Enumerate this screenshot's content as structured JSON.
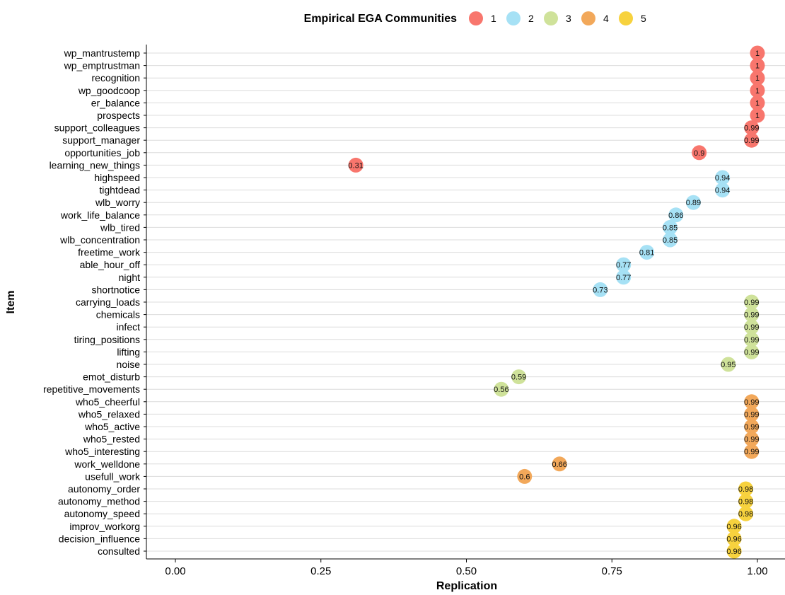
{
  "chart_data": {
    "type": "scatter",
    "title": "",
    "xlabel": "Replication",
    "ylabel": "Item",
    "xlim": [
      -0.05,
      1.05
    ],
    "xticks": [
      0.0,
      0.25,
      0.5,
      0.75,
      1.0
    ],
    "xtick_labels": [
      "0.00",
      "0.25",
      "0.50",
      "0.75",
      "1.00"
    ],
    "grid": "horizontal",
    "legend": {
      "title": "Empirical EGA Communities",
      "position": "top",
      "entries": [
        {
          "label": "1",
          "color": "#F8766D"
        },
        {
          "label": "2",
          "color": "#A6E1F5"
        },
        {
          "label": "3",
          "color": "#CFE29A"
        },
        {
          "label": "4",
          "color": "#F2A85A"
        },
        {
          "label": "5",
          "color": "#F7D23E"
        }
      ]
    },
    "points": [
      {
        "item": "wp_mantrustemp",
        "value": 1.0,
        "label": "1",
        "community": "1"
      },
      {
        "item": "wp_emptrustman",
        "value": 1.0,
        "label": "1",
        "community": "1"
      },
      {
        "item": "recognition",
        "value": 1.0,
        "label": "1",
        "community": "1"
      },
      {
        "item": "wp_goodcoop",
        "value": 1.0,
        "label": "1",
        "community": "1"
      },
      {
        "item": "er_balance",
        "value": 1.0,
        "label": "1",
        "community": "1"
      },
      {
        "item": "prospects",
        "value": 1.0,
        "label": "1",
        "community": "1"
      },
      {
        "item": "support_colleagues",
        "value": 0.99,
        "label": "0.99",
        "community": "1"
      },
      {
        "item": "support_manager",
        "value": 0.99,
        "label": "0.99",
        "community": "1"
      },
      {
        "item": "opportunities_job",
        "value": 0.9,
        "label": "0.9",
        "community": "1"
      },
      {
        "item": "learning_new_things",
        "value": 0.31,
        "label": "0.31",
        "community": "1"
      },
      {
        "item": "highspeed",
        "value": 0.94,
        "label": "0.94",
        "community": "2"
      },
      {
        "item": "tightdead",
        "value": 0.94,
        "label": "0.94",
        "community": "2"
      },
      {
        "item": "wlb_worry",
        "value": 0.89,
        "label": "0.89",
        "community": "2"
      },
      {
        "item": "work_life_balance",
        "value": 0.86,
        "label": "0.86",
        "community": "2"
      },
      {
        "item": "wlb_tired",
        "value": 0.85,
        "label": "0.85",
        "community": "2"
      },
      {
        "item": "wlb_concentration",
        "value": 0.85,
        "label": "0.85",
        "community": "2"
      },
      {
        "item": "freetime_work",
        "value": 0.81,
        "label": "0.81",
        "community": "2"
      },
      {
        "item": "able_hour_off",
        "value": 0.77,
        "label": "0.77",
        "community": "2"
      },
      {
        "item": "night",
        "value": 0.77,
        "label": "0.77",
        "community": "2"
      },
      {
        "item": "shortnotice",
        "value": 0.73,
        "label": "0.73",
        "community": "2"
      },
      {
        "item": "carrying_loads",
        "value": 0.99,
        "label": "0.99",
        "community": "3"
      },
      {
        "item": "chemicals",
        "value": 0.99,
        "label": "0.99",
        "community": "3"
      },
      {
        "item": "infect",
        "value": 0.99,
        "label": "0.99",
        "community": "3"
      },
      {
        "item": "tiring_positions",
        "value": 0.99,
        "label": "0.99",
        "community": "3"
      },
      {
        "item": "lifting",
        "value": 0.99,
        "label": "0.99",
        "community": "3"
      },
      {
        "item": "noise",
        "value": 0.95,
        "label": "0.95",
        "community": "3"
      },
      {
        "item": "emot_disturb",
        "value": 0.59,
        "label": "0.59",
        "community": "3"
      },
      {
        "item": "repetitive_movements",
        "value": 0.56,
        "label": "0.56",
        "community": "3"
      },
      {
        "item": "who5_cheerful",
        "value": 0.99,
        "label": "0.99",
        "community": "4"
      },
      {
        "item": "who5_relaxed",
        "value": 0.99,
        "label": "0.99",
        "community": "4"
      },
      {
        "item": "who5_active",
        "value": 0.99,
        "label": "0.99",
        "community": "4"
      },
      {
        "item": "who5_rested",
        "value": 0.99,
        "label": "0.99",
        "community": "4"
      },
      {
        "item": "who5_interesting",
        "value": 0.99,
        "label": "0.99",
        "community": "4"
      },
      {
        "item": "work_welldone",
        "value": 0.66,
        "label": "0.66",
        "community": "4"
      },
      {
        "item": "usefull_work",
        "value": 0.6,
        "label": "0.6",
        "community": "4"
      },
      {
        "item": "autonomy_order",
        "value": 0.98,
        "label": "0.98",
        "community": "5"
      },
      {
        "item": "autonomy_method",
        "value": 0.98,
        "label": "0.98",
        "community": "5"
      },
      {
        "item": "autonomy_speed",
        "value": 0.98,
        "label": "0.98",
        "community": "5"
      },
      {
        "item": "improv_workorg",
        "value": 0.96,
        "label": "0.96",
        "community": "5"
      },
      {
        "item": "decision_influence",
        "value": 0.96,
        "label": "0.96",
        "community": "5"
      },
      {
        "item": "consulted",
        "value": 0.96,
        "label": "0.96",
        "community": "5"
      }
    ]
  }
}
